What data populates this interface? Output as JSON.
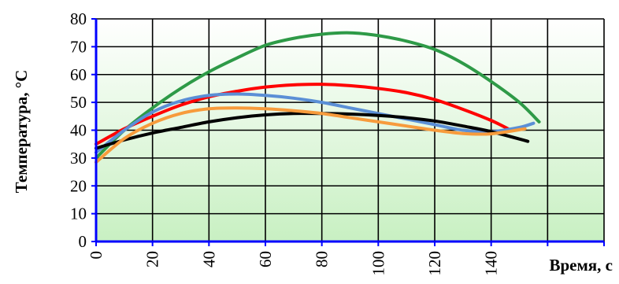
{
  "chart_data": {
    "type": "line",
    "title": "",
    "xlabel": "Время, с",
    "ylabel": "Температура, °С",
    "xlim": [
      0,
      180
    ],
    "ylim": [
      0,
      80
    ],
    "x_ticks": [
      0,
      20,
      40,
      60,
      80,
      100,
      120,
      140
    ],
    "y_ticks": [
      0,
      10,
      20,
      30,
      40,
      50,
      60,
      70,
      80
    ],
    "grid": true,
    "legend": "none",
    "background_gradient": [
      "#ffffff",
      "#c8f0c2"
    ],
    "grid_color": "#000000",
    "axis_color": "#0000ff",
    "series": [
      {
        "color": "#2e9a47",
        "x": [
          0,
          10,
          20,
          30,
          40,
          50,
          60,
          70,
          80,
          90,
          100,
          110,
          120,
          130,
          140,
          150,
          157
        ],
        "y": [
          30,
          40,
          48,
          55,
          61,
          66,
          70.5,
          73,
          74.5,
          75,
          74,
          72,
          69,
          64,
          57.5,
          50,
          43
        ]
      },
      {
        "color": "#ff0000",
        "x": [
          0,
          10,
          20,
          30,
          40,
          50,
          60,
          70,
          80,
          90,
          100,
          110,
          120,
          130,
          140,
          147
        ],
        "y": [
          35,
          40.5,
          45,
          49,
          52,
          54,
          55.5,
          56.3,
          56.5,
          56,
          55,
          53.5,
          51,
          47.5,
          43.5,
          40
        ]
      },
      {
        "color": "#5b8fd6",
        "x": [
          0,
          10,
          20,
          30,
          40,
          50,
          60,
          70,
          80,
          90,
          100,
          110,
          120,
          130,
          140,
          150,
          155
        ],
        "y": [
          32,
          40,
          46.5,
          50.5,
          52.5,
          53,
          52.5,
          51.5,
          50,
          48,
          46,
          44,
          42,
          40,
          39.5,
          41,
          42.5
        ]
      },
      {
        "color": "#000000",
        "x": [
          0,
          10,
          20,
          30,
          40,
          50,
          60,
          70,
          80,
          90,
          100,
          110,
          120,
          130,
          140,
          153
        ],
        "y": [
          33.5,
          36.5,
          39,
          41,
          43,
          44.5,
          45.5,
          46,
          46,
          45.8,
          45.3,
          44.5,
          43.3,
          41.5,
          39.5,
          36
        ]
      },
      {
        "color": "#f79b3c",
        "x": [
          0,
          10,
          20,
          30,
          40,
          50,
          60,
          70,
          80,
          90,
          100,
          110,
          120,
          130,
          140,
          152
        ],
        "y": [
          28.5,
          37,
          42.5,
          46,
          47.7,
          48,
          47.7,
          47,
          46,
          44.5,
          43,
          41.5,
          40,
          38.8,
          38.7,
          40.5
        ]
      }
    ]
  }
}
